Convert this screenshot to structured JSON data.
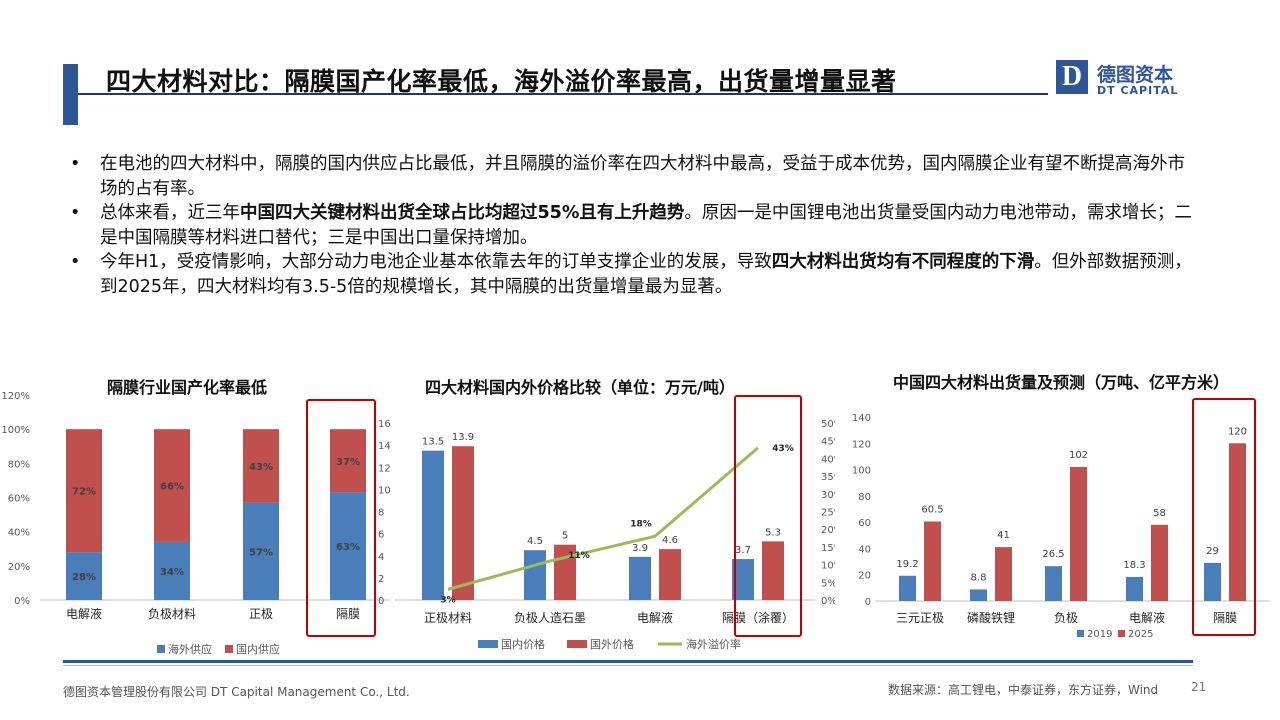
{
  "header": {
    "title": "四大材料对比：隔膜国产化率最低，海外溢价率最高，出货量增量显著",
    "logo_mark": "D",
    "logo_cn": "德图资本",
    "logo_en": "DT CAPITAL"
  },
  "bullets": [
    {
      "segments": [
        {
          "text": "在电池的四大材料中，隔膜的国内供应占比最低，并且隔膜的溢价率在四大材料中最高，受益于成本优势，国内隔膜企业有望不断提高海外市场的占有率。",
          "bold": false
        }
      ]
    },
    {
      "segments": [
        {
          "text": "总体来看，近三年",
          "bold": false
        },
        {
          "text": "中国四大关键材料出货全球占比均超过55%且有上升趋势",
          "bold": true
        },
        {
          "text": "。原因一是中国锂电池出货量受国内动力电池带动，需求增长；二是中国隔膜等材料进口替代；三是中国出口量保持增加。",
          "bold": false
        }
      ]
    },
    {
      "segments": [
        {
          "text": "今年H1，受疫情影响，大部分动力电池企业基本依靠去年的订单支撑企业的发展，导致",
          "bold": false
        },
        {
          "text": "四大材料出货均有不同程度的下滑",
          "bold": true
        },
        {
          "text": "。但外部数据预测，到2025年，四大材料均有3.5-5倍的规模增长，其中隔膜的出货量增量最为显著。",
          "bold": false
        }
      ]
    }
  ],
  "charts": {
    "c1_title": "隔膜行业国产化率最低",
    "c2_title": "四大材料国内外价格比较（单位：万元/吨）",
    "c3_title": "中国四大材料出货量及预测（万吨、亿平方米）"
  },
  "colors": {
    "blue": "#4a7ebb",
    "red": "#c0504d",
    "green": "#9bbb59",
    "highlight": "#c00000",
    "navy": "#2e5597"
  },
  "chart_data": [
    {
      "type": "bar",
      "stacked": true,
      "title": "隔膜行业国产化率最低",
      "categories": [
        "电解液",
        "负极材料",
        "正极",
        "隔膜"
      ],
      "series": [
        {
          "name": "海外供应",
          "values": [
            28,
            34,
            57,
            63
          ],
          "labels": [
            "28%",
            "34%",
            "57%",
            "63%"
          ]
        },
        {
          "name": "国内供应",
          "values": [
            72,
            66,
            43,
            37
          ],
          "labels": [
            "72%",
            "66%",
            "43%",
            "37%"
          ]
        }
      ],
      "y_ticks": [
        "0%",
        "20%",
        "40%",
        "60%",
        "80%",
        "100%",
        "120%"
      ],
      "ylim": [
        0,
        120
      ],
      "legend": "bottom",
      "highlight_category": "隔膜"
    },
    {
      "type": "bar",
      "title": "四大材料国内外价格比较（单位：万元/吨）",
      "categories": [
        "正极材料",
        "负极人造石墨",
        "电解液",
        "隔膜（涂覆）"
      ],
      "series": [
        {
          "name": "国内价格",
          "values": [
            13.5,
            4.5,
            3.9,
            3.7
          ],
          "labels": [
            "13.5",
            "4.5",
            "3.9",
            "3.7"
          ]
        },
        {
          "name": "国外价格",
          "values": [
            13.9,
            5,
            4.6,
            5.3
          ],
          "labels": [
            "13.9",
            "5",
            "4.6",
            "5.3"
          ]
        },
        {
          "name": "海外溢价率",
          "type": "line",
          "axis": "right",
          "values": [
            3,
            11,
            18,
            43
          ],
          "labels": [
            "3%",
            "11%",
            "18%",
            "43%"
          ]
        }
      ],
      "y_ticks": [
        "0",
        "2",
        "4",
        "6",
        "8",
        "10",
        "12",
        "14",
        "16"
      ],
      "ylim": [
        0,
        16
      ],
      "y2_ticks": [
        "0%",
        "5%",
        "10%",
        "15%",
        "20%",
        "25%",
        "30%",
        "35%",
        "40%",
        "45%",
        "50%"
      ],
      "y2lim": [
        0,
        50
      ],
      "legend": "bottom",
      "highlight_category": "隔膜（涂覆）"
    },
    {
      "type": "bar",
      "title": "中国四大材料出货量及预测（万吨、亿平方米）",
      "categories": [
        "三元正极",
        "磷酸铁锂",
        "负极",
        "电解液",
        "隔膜"
      ],
      "series": [
        {
          "name": "2019",
          "values": [
            19.2,
            8.8,
            26.5,
            18.3,
            29
          ],
          "labels": [
            "19.2",
            "8.8",
            "26.5",
            "18.3",
            "29"
          ]
        },
        {
          "name": "2025",
          "values": [
            60.5,
            41,
            102,
            58,
            120
          ],
          "labels": [
            "60.5",
            "41",
            "102",
            "58",
            "120"
          ]
        }
      ],
      "y_ticks": [
        "0",
        "20",
        "40",
        "60",
        "80",
        "100",
        "120",
        "140"
      ],
      "ylim": [
        0,
        140
      ],
      "legend": "bottom",
      "highlight_category": "隔膜"
    }
  ],
  "footer": {
    "company": "德图资本管理股份有限公司  DT Capital Management  Co., Ltd.",
    "source": "数据来源：高工锂电，中泰证券，东方证券，Wind",
    "page": "21"
  }
}
